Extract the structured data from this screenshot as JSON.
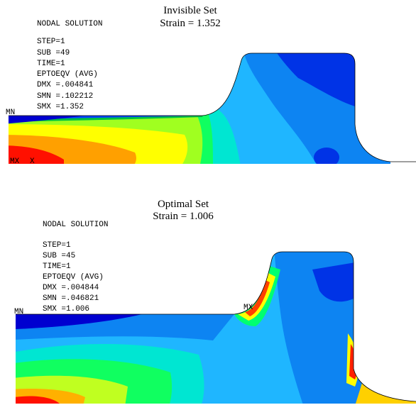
{
  "panels": [
    {
      "title": "Invisible Set",
      "subtitle": "Strain = 1.352",
      "lines": [
        "NODAL SOLUTION",
        "STEP=1",
        "SUB =49",
        "TIME=1",
        "EPTOEQV   (AVG)",
        "DMX =.004841",
        "SMN =.102212",
        "SMX =1.352"
      ],
      "labels": [
        "MN",
        "MX",
        "X"
      ]
    },
    {
      "title": "Optimal Set",
      "subtitle": "Strain = 1.006",
      "lines": [
        "NODAL SOLUTION",
        "STEP=1",
        "SUB =45",
        "TIME=1",
        "EPTOEQV   (AVG)",
        "DMX =.004844",
        "SMN =.046821",
        "SMX =1.006"
      ],
      "labels": [
        "MN",
        "MX"
      ]
    }
  ]
}
